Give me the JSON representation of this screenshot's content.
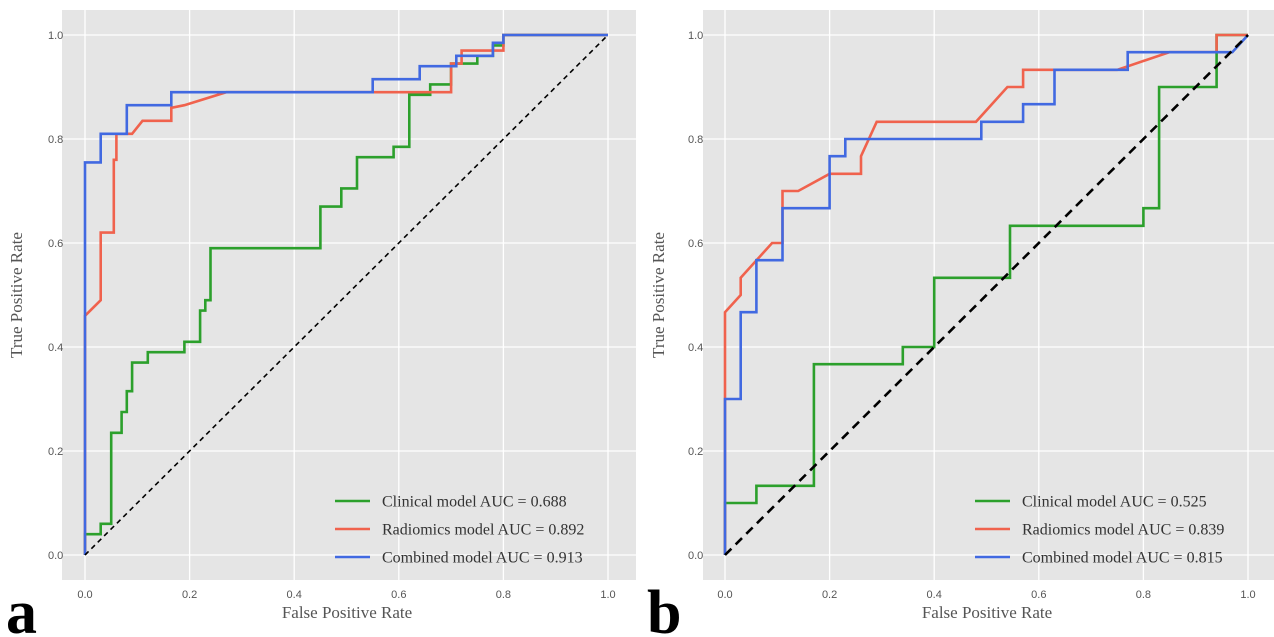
{
  "chart_data": [
    {
      "type": "line",
      "panel_label": "a",
      "xlabel": "False Positive Rate",
      "ylabel": "True Positive Rate",
      "xlim": [
        0,
        1
      ],
      "ylim": [
        0,
        1
      ],
      "xticks": [
        "0.0",
        "0.2",
        "0.4",
        "0.6",
        "0.8",
        "1.0"
      ],
      "yticks": [
        "0.0",
        "0.2",
        "0.4",
        "0.6",
        "0.8",
        "1.0"
      ],
      "grid": true,
      "legend_position": "bottom-right",
      "series": [
        {
          "name": "Clinical model AUC = 0.688",
          "color": "#2ca02c",
          "x": [
            0,
            0,
            0.03,
            0.03,
            0.05,
            0.05,
            0.07,
            0.07,
            0.08,
            0.08,
            0.09,
            0.09,
            0.12,
            0.12,
            0.19,
            0.19,
            0.22,
            0.22,
            0.23,
            0.23,
            0.24,
            0.24,
            0.45,
            0.45,
            0.49,
            0.49,
            0.52,
            0.52,
            0.59,
            0.59,
            0.62,
            0.62,
            0.66,
            0.66,
            0.7,
            0.7,
            0.75,
            0.75,
            0.78,
            0.78,
            0.8,
            0.8,
            0.82,
            1.0
          ],
          "y": [
            0,
            0.04,
            0.04,
            0.06,
            0.06,
            0.235,
            0.235,
            0.275,
            0.275,
            0.315,
            0.315,
            0.37,
            0.37,
            0.39,
            0.39,
            0.41,
            0.41,
            0.47,
            0.47,
            0.49,
            0.49,
            0.59,
            0.59,
            0.67,
            0.67,
            0.705,
            0.705,
            0.765,
            0.765,
            0.785,
            0.785,
            0.885,
            0.885,
            0.905,
            0.905,
            0.945,
            0.945,
            0.96,
            0.96,
            0.98,
            0.98,
            1.0,
            1.0,
            1.0
          ]
        },
        {
          "name": "Radiomics model AUC = 0.892",
          "color": "#f0624d",
          "x": [
            0,
            0,
            0.03,
            0.03,
            0.055,
            0.055,
            0.06,
            0.06,
            0.09,
            0.11,
            0.11,
            0.165,
            0.165,
            0.19,
            0.27,
            0.7,
            0.7,
            0.72,
            0.72,
            0.8,
            0.8,
            0.82,
            1.0
          ],
          "y": [
            0,
            0.46,
            0.49,
            0.62,
            0.62,
            0.76,
            0.76,
            0.81,
            0.81,
            0.835,
            0.835,
            0.835,
            0.86,
            0.865,
            0.89,
            0.89,
            0.945,
            0.945,
            0.97,
            0.97,
            1.0,
            1.0,
            1.0
          ]
        },
        {
          "name": "Combined model AUC = 0.913",
          "color": "#4169e1",
          "x": [
            0,
            0,
            0.03,
            0.03,
            0.08,
            0.08,
            0.165,
            0.165,
            0.55,
            0.55,
            0.64,
            0.64,
            0.71,
            0.71,
            0.78,
            0.78,
            0.8,
            0.8,
            1.0
          ],
          "y": [
            0,
            0.755,
            0.755,
            0.81,
            0.81,
            0.865,
            0.865,
            0.89,
            0.89,
            0.915,
            0.915,
            0.94,
            0.94,
            0.96,
            0.96,
            0.985,
            0.985,
            1.0,
            1.0
          ]
        },
        {
          "role": "reference-diagonal",
          "color": "#000000",
          "dash": "dashed",
          "x": [
            0,
            1
          ],
          "y": [
            0,
            1
          ]
        }
      ]
    },
    {
      "type": "line",
      "panel_label": "b",
      "xlabel": "False Positive Rate",
      "ylabel": "True Positive Rate",
      "xlim": [
        0,
        1
      ],
      "ylim": [
        0,
        1
      ],
      "xticks": [
        "0.0",
        "0.2",
        "0.4",
        "0.6",
        "0.8",
        "1.0"
      ],
      "yticks": [
        "0.0",
        "0.2",
        "0.4",
        "0.6",
        "0.8",
        "1.0"
      ],
      "grid": true,
      "legend_position": "bottom-right",
      "series": [
        {
          "name": "Clinical model AUC = 0.525",
          "color": "#2ca02c",
          "x": [
            0,
            0,
            0.06,
            0.06,
            0.17,
            0.17,
            0.34,
            0.34,
            0.4,
            0.4,
            0.545,
            0.545,
            0.8,
            0.8,
            0.83,
            0.83,
            0.94,
            0.94,
            1.0
          ],
          "y": [
            0,
            0.1,
            0.1,
            0.133,
            0.133,
            0.367,
            0.367,
            0.4,
            0.4,
            0.533,
            0.533,
            0.633,
            0.633,
            0.667,
            0.667,
            0.9,
            0.9,
            1.0,
            1.0
          ]
        },
        {
          "name": "Radiomics model AUC = 0.839",
          "color": "#f0624d",
          "x": [
            0,
            0,
            0.03,
            0.03,
            0.09,
            0.11,
            0.11,
            0.14,
            0.2,
            0.26,
            0.26,
            0.29,
            0.48,
            0.54,
            0.57,
            0.57,
            0.63,
            0.75,
            0.85,
            0.94,
            0.94,
            0.96,
            1.0
          ],
          "y": [
            0,
            0.467,
            0.5,
            0.533,
            0.6,
            0.6,
            0.7,
            0.7,
            0.733,
            0.733,
            0.767,
            0.833,
            0.833,
            0.9,
            0.9,
            0.933,
            0.933,
            0.933,
            0.967,
            0.967,
            1.0,
            1.0,
            1.0
          ]
        },
        {
          "name": "Combined model AUC = 0.815",
          "color": "#4169e1",
          "x": [
            0,
            0,
            0.03,
            0.03,
            0.06,
            0.06,
            0.11,
            0.11,
            0.2,
            0.2,
            0.23,
            0.23,
            0.49,
            0.49,
            0.57,
            0.57,
            0.63,
            0.63,
            0.77,
            0.77,
            0.97,
            1.0
          ],
          "y": [
            0,
            0.3,
            0.3,
            0.467,
            0.467,
            0.567,
            0.567,
            0.667,
            0.667,
            0.767,
            0.767,
            0.8,
            0.8,
            0.833,
            0.833,
            0.867,
            0.867,
            0.933,
            0.933,
            0.967,
            0.967,
            1.0
          ]
        },
        {
          "role": "reference-diagonal",
          "color": "#000000",
          "dash": "dashed",
          "x": [
            0,
            1
          ],
          "y": [
            0,
            1
          ]
        }
      ]
    }
  ]
}
